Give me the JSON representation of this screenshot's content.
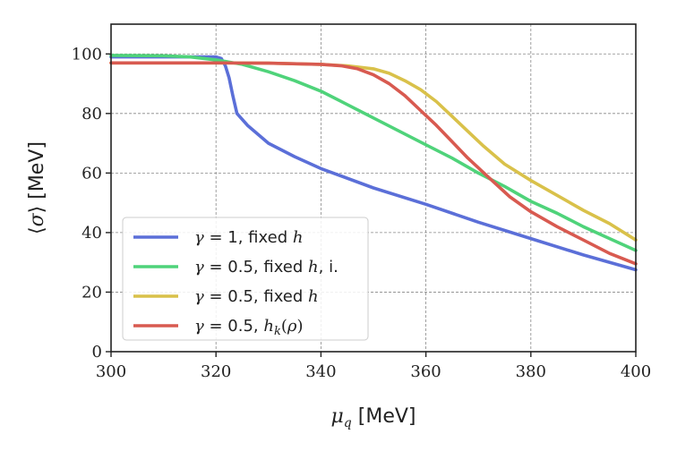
{
  "chart_data": {
    "type": "line",
    "title": "",
    "xlabel": "μ_q [MeV]",
    "ylabel": "⟨σ⟩ [MeV]",
    "xlim": [
      300,
      400
    ],
    "ylim": [
      0,
      110
    ],
    "xticks": [
      300,
      320,
      340,
      360,
      380,
      400
    ],
    "yticks": [
      0,
      20,
      40,
      60,
      80,
      100
    ],
    "grid": true,
    "legend_position": "lower-left",
    "series": [
      {
        "name": "γ = 1, fixed h",
        "color": "#5b6fd8",
        "x": [
          300,
          310,
          318,
          320,
          321,
          321.8,
          322.5,
          323.2,
          324,
          326,
          330,
          335,
          340,
          350,
          360,
          370,
          380,
          390,
          400
        ],
        "y": [
          99,
          99,
          99,
          99,
          98.5,
          96,
          92,
          86,
          80,
          76,
          70,
          65.5,
          61.5,
          55,
          49.5,
          43.5,
          38,
          32.5,
          27.5
        ]
      },
      {
        "name": "γ = 0.5, fixed h, i.",
        "color": "#4fd37a",
        "x": [
          300,
          310,
          315,
          320,
          325,
          330,
          335,
          340,
          345,
          350,
          355,
          360,
          365,
          370,
          375,
          380,
          385,
          390,
          395,
          400
        ],
        "y": [
          99.5,
          99.4,
          99,
          98,
          96.5,
          94,
          91,
          87.5,
          83,
          78.5,
          74,
          69.5,
          65,
          60,
          55.5,
          50.5,
          46.5,
          42,
          38,
          34
        ]
      },
      {
        "name": "γ = 0.5, fixed h",
        "color": "#d9c14a",
        "x": [
          300,
          310,
          320,
          330,
          340,
          345,
          350,
          353,
          356,
          359,
          362,
          365,
          368,
          371,
          375,
          380,
          385,
          390,
          395,
          400
        ],
        "y": [
          97,
          97,
          97,
          96.9,
          96.5,
          96,
          95,
          93.5,
          91,
          88,
          84,
          79,
          74,
          69,
          63,
          57.5,
          52.5,
          47.5,
          43,
          37.5
        ]
      },
      {
        "name": "γ = 0.5, h_k(ρ)",
        "color": "#d85a50",
        "x": [
          300,
          310,
          320,
          330,
          340,
          344,
          347,
          350,
          353,
          356,
          359,
          362,
          365,
          368,
          372,
          376,
          380,
          385,
          390,
          395,
          400
        ],
        "y": [
          97,
          97,
          97,
          96.9,
          96.5,
          96,
          95,
          93,
          90,
          86,
          81,
          76,
          70.5,
          65,
          58.5,
          52,
          47,
          42,
          37.5,
          33,
          29.5
        ]
      }
    ]
  }
}
